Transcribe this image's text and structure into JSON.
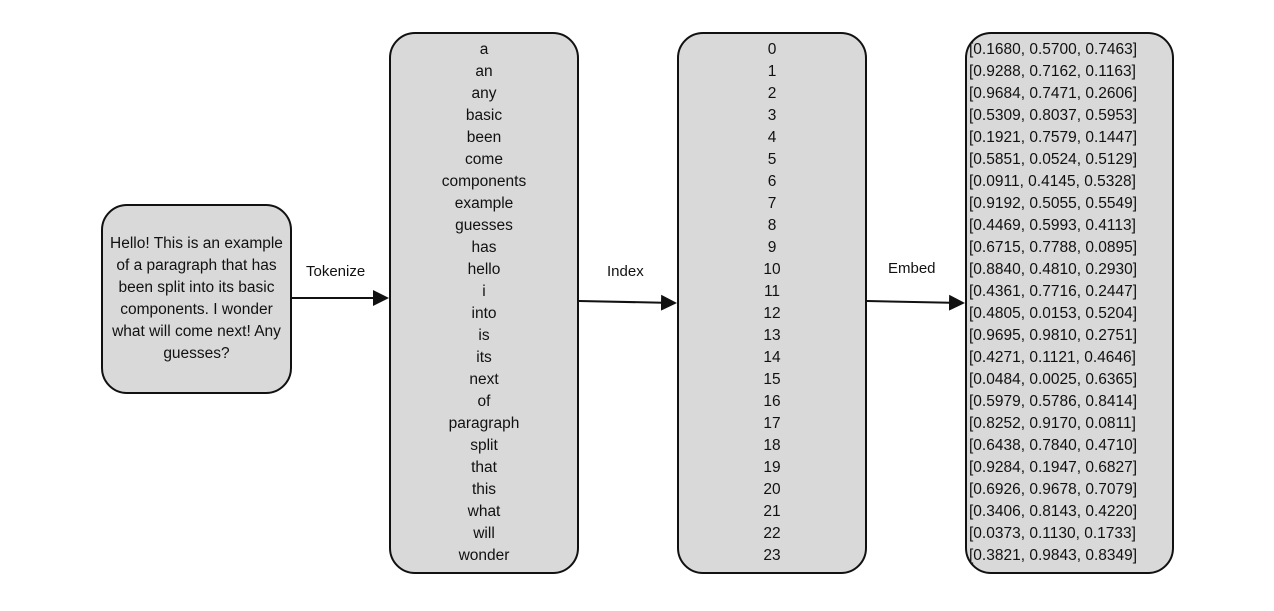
{
  "input_text": "Hello! This is an example of a paragraph that has been split into its basic components. I wonder what will come next! Any guesses?",
  "steps": {
    "tokenize": "Tokenize",
    "index": "Index",
    "embed": "Embed"
  },
  "tokens": [
    "a",
    "an",
    "any",
    "basic",
    "been",
    "come",
    "components",
    "example",
    "guesses",
    "has",
    "hello",
    "i",
    "into",
    "is",
    "its",
    "next",
    "of",
    "paragraph",
    "split",
    "that",
    "this",
    "what",
    "will",
    "wonder"
  ],
  "indices": [
    "0",
    "1",
    "2",
    "3",
    "4",
    "5",
    "6",
    "7",
    "8",
    "9",
    "10",
    "11",
    "12",
    "13",
    "14",
    "15",
    "16",
    "17",
    "18",
    "19",
    "20",
    "21",
    "22",
    "23"
  ],
  "embeddings": [
    "[0.1680, 0.5700, 0.7463]",
    "[0.9288, 0.7162, 0.1163]",
    "[0.9684, 0.7471, 0.2606]",
    "[0.5309, 0.8037, 0.5953]",
    "[0.1921, 0.7579, 0.1447]",
    "[0.5851, 0.0524, 0.5129]",
    "[0.0911, 0.4145, 0.5328]",
    "[0.9192, 0.5055, 0.5549]",
    "[0.4469, 0.5993, 0.4113]",
    "[0.6715, 0.7788, 0.0895]",
    "[0.8840, 0.4810, 0.2930]",
    "[0.4361, 0.7716, 0.2447]",
    "[0.4805, 0.0153, 0.5204]",
    "[0.9695, 0.9810, 0.2751]",
    "[0.4271, 0.1121, 0.4646]",
    "[0.0484, 0.0025, 0.6365]",
    "[0.5979, 0.5786, 0.8414]",
    "[0.8252, 0.9170, 0.0811]",
    "[0.6438, 0.7840, 0.4710]",
    "[0.9284, 0.1947, 0.6827]",
    "[0.6926, 0.9678, 0.7079]",
    "[0.3406, 0.8143, 0.4220]",
    "[0.0373, 0.1130, 0.1733]",
    "[0.3821, 0.9843, 0.8349]"
  ],
  "colors": {
    "box_fill": "#d9d9d9",
    "stroke": "#111111"
  }
}
